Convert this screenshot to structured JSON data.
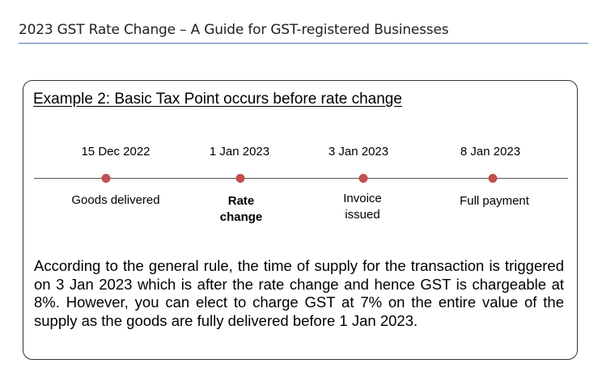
{
  "header": {
    "title": "2023 GST Rate Change – A Guide for GST-registered Businesses"
  },
  "example": {
    "title": "Example 2: Basic Tax Point occurs before rate change",
    "timeline": [
      {
        "date": "15 Dec 2022",
        "event_line1": "Goods delivered",
        "event_line2": ""
      },
      {
        "date": "1 Jan 2023",
        "event_line1": "Rate",
        "event_line2": "change"
      },
      {
        "date": "3 Jan 2023",
        "event_line1": "Invoice",
        "event_line2": "issued"
      },
      {
        "date": "8 Jan 2023",
        "event_line1": "Full payment",
        "event_line2": ""
      }
    ],
    "marker_color": "#c0504d",
    "paragraph": "According to the general rule, the time of supply for the transaction is triggered on 3 Jan 2023 which is after the rate change and hence GST is chargeable at 8%. However, you can elect to charge GST at 7% on the entire value of the supply as the goods are fully delivered before 1 Jan 2023."
  }
}
